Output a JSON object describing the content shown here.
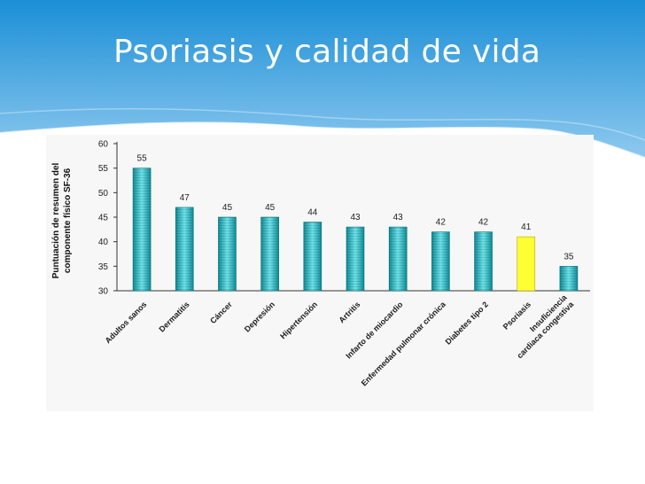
{
  "slide": {
    "title": "Psoriasis y calidad de vida"
  },
  "colors": {
    "header_top": "#1b8fd6",
    "header_bottom": "#8ec9ef",
    "bar_teal_light": "#6fe3ea",
    "bar_teal_dark": "#0f8d98",
    "bar_highlight": "#ffff33",
    "highlight_label": "#e8202a"
  },
  "chart_data": {
    "type": "bar",
    "title": "",
    "ylabel": [
      "Puntuación de resumen del",
      "componente físico SF-36"
    ],
    "xlabel": "",
    "ylim": [
      30,
      60
    ],
    "yticks": [
      30,
      35,
      40,
      45,
      50,
      55,
      60
    ],
    "grid": false,
    "legend": "none",
    "categories": [
      [
        "Adultos sanos"
      ],
      [
        "Dermatitis"
      ],
      [
        "Cáncer"
      ],
      [
        "Depresión"
      ],
      [
        "Hipertensión"
      ],
      [
        "Artritis"
      ],
      [
        "Infarto de miocardio"
      ],
      [
        "Enfermedad pulmonar crónica"
      ],
      [
        "Diabetes tipo 2"
      ],
      [
        "Psoriasis"
      ],
      [
        "Insuficiencia",
        "cardiaca congestiva"
      ]
    ],
    "values": [
      55,
      47,
      45,
      45,
      44,
      43,
      43,
      42,
      42,
      41,
      35
    ],
    "highlight_index": 9
  }
}
